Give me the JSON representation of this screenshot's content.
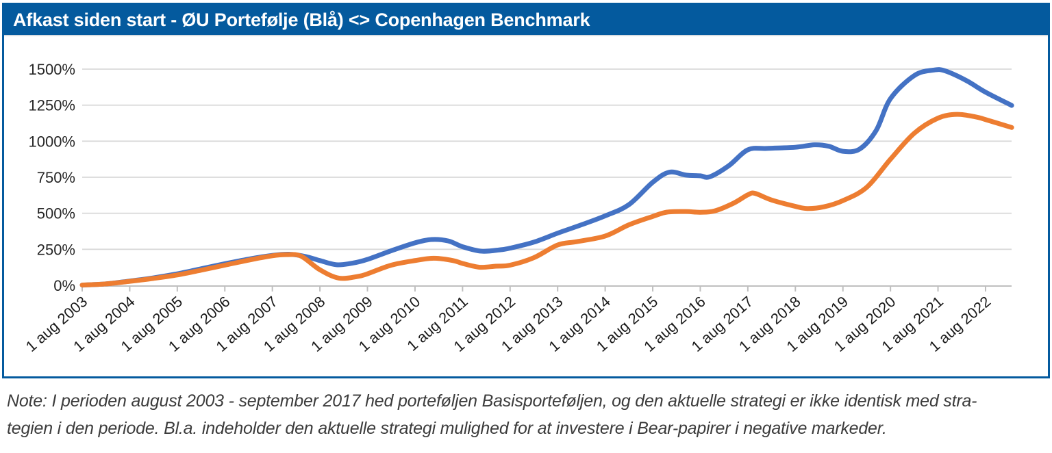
{
  "header": {
    "title": "Afkast siden start - ØU Portefølje (Blå) <> Copenhagen Benchmark"
  },
  "note": {
    "line1": "Note: I perioden august 2003 - september 2017 hed porteføljen Basisporteføljen, og den aktuelle strategi er ikke identisk med stra-",
    "line2": "tegien i den periode. Bl.a. indeholder den aktuelle strategi mulighed for at investere i Bear-papirer i negative markeder."
  },
  "colors": {
    "header_bg": "#045A9E",
    "border": "#045A9E",
    "grid": "#D9D9D9",
    "axis": "#BFBFBF",
    "tick_label": "#262626",
    "portfolio_line": "#4472C4",
    "benchmark_line": "#ED7D31"
  },
  "chart_data": {
    "type": "line",
    "title": "Afkast siden start - ØU Portefølje (Blå) <> Copenhagen Benchmark",
    "xlabel": "",
    "ylabel": "",
    "ylim": [
      0,
      1500
    ],
    "y_tick_step": 250,
    "y_tick_labels": [
      "0%",
      "250%",
      "500%",
      "750%",
      "1000%",
      "1250%",
      "1500%"
    ],
    "grid": true,
    "legend_position": "none",
    "x_tick_labels": [
      "1 aug 2003",
      "1 aug 2004",
      "1 aug 2005",
      "1 aug 2006",
      "1 aug 2007",
      "1 aug 2008",
      "1 aug 2009",
      "1 aug 2010",
      "1 aug 2011",
      "1 aug 2012",
      "1 aug 2013",
      "1 aug 2014",
      "1 aug 2015",
      "1 aug 2016",
      "1 aug 2017",
      "1 aug 2018",
      "1 aug 2019",
      "1 aug 2020",
      "1 aug 2021",
      "1 aug 2022"
    ],
    "x_unit": "years since 1 aug 2003",
    "series": [
      {
        "name": "ØU Portefølje (Blå)",
        "color": "#4472C4",
        "points": [
          [
            0,
            2
          ],
          [
            0.5,
            10
          ],
          [
            1,
            30
          ],
          [
            1.5,
            52
          ],
          [
            2,
            80
          ],
          [
            2.5,
            115
          ],
          [
            3,
            150
          ],
          [
            3.5,
            182
          ],
          [
            4,
            208
          ],
          [
            4.35,
            216
          ],
          [
            4.7,
            200
          ],
          [
            5,
            172
          ],
          [
            5.35,
            143
          ],
          [
            5.7,
            155
          ],
          [
            6,
            180
          ],
          [
            6.5,
            240
          ],
          [
            7,
            295
          ],
          [
            7.35,
            318
          ],
          [
            7.7,
            308
          ],
          [
            8,
            268
          ],
          [
            8.4,
            237
          ],
          [
            8.8,
            247
          ],
          [
            9,
            258
          ],
          [
            9.5,
            300
          ],
          [
            10,
            362
          ],
          [
            10.5,
            420
          ],
          [
            11,
            482
          ],
          [
            11.5,
            560
          ],
          [
            12,
            715
          ],
          [
            12.35,
            785
          ],
          [
            12.7,
            765
          ],
          [
            13,
            760
          ],
          [
            13.2,
            753
          ],
          [
            13.6,
            830
          ],
          [
            14,
            940
          ],
          [
            14.4,
            950
          ],
          [
            15,
            958
          ],
          [
            15.4,
            975
          ],
          [
            15.7,
            965
          ],
          [
            16,
            930
          ],
          [
            16.35,
            945
          ],
          [
            16.7,
            1075
          ],
          [
            17,
            1295
          ],
          [
            17.5,
            1455
          ],
          [
            17.9,
            1493
          ],
          [
            18.15,
            1488
          ],
          [
            18.6,
            1420
          ],
          [
            19,
            1340
          ],
          [
            19.55,
            1248
          ]
        ]
      },
      {
        "name": "Copenhagen Benchmark",
        "color": "#ED7D31",
        "points": [
          [
            0,
            2
          ],
          [
            0.5,
            10
          ],
          [
            1,
            28
          ],
          [
            1.5,
            48
          ],
          [
            2,
            72
          ],
          [
            2.5,
            105
          ],
          [
            3,
            140
          ],
          [
            3.5,
            175
          ],
          [
            4,
            205
          ],
          [
            4.3,
            213
          ],
          [
            4.6,
            203
          ],
          [
            5,
            108
          ],
          [
            5.4,
            50
          ],
          [
            5.8,
            62
          ],
          [
            6,
            80
          ],
          [
            6.5,
            140
          ],
          [
            7,
            172
          ],
          [
            7.4,
            188
          ],
          [
            7.8,
            172
          ],
          [
            8,
            152
          ],
          [
            8.35,
            126
          ],
          [
            8.7,
            133
          ],
          [
            9,
            140
          ],
          [
            9.5,
            192
          ],
          [
            10,
            280
          ],
          [
            10.4,
            303
          ],
          [
            11,
            342
          ],
          [
            11.5,
            420
          ],
          [
            12,
            478
          ],
          [
            12.3,
            508
          ],
          [
            12.7,
            512
          ],
          [
            13,
            507
          ],
          [
            13.3,
            516
          ],
          [
            13.7,
            570
          ],
          [
            14,
            628
          ],
          [
            14.15,
            638
          ],
          [
            14.5,
            592
          ],
          [
            15,
            548
          ],
          [
            15.25,
            533
          ],
          [
            15.6,
            545
          ],
          [
            16,
            588
          ],
          [
            16.5,
            680
          ],
          [
            17,
            875
          ],
          [
            17.5,
            1055
          ],
          [
            18,
            1160
          ],
          [
            18.4,
            1186
          ],
          [
            18.8,
            1168
          ],
          [
            19,
            1150
          ],
          [
            19.55,
            1095
          ]
        ]
      }
    ]
  }
}
